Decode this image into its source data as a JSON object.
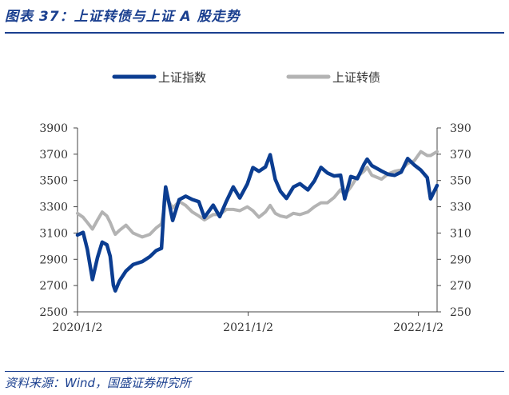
{
  "figure": {
    "title": "图表 37：上证转债与上证 A 股走势",
    "source": "资料来源：Wind，国盛证券研究所"
  },
  "colors": {
    "accent": "#1a3f8f",
    "series_primary": "#0b3d91",
    "series_secondary": "#b3b3b3"
  },
  "chart_data": {
    "type": "line",
    "title": "",
    "xlabel": "",
    "ylabel": "",
    "legend_position": "top",
    "grid": false,
    "x_ticks": [
      "2020/1/2",
      "2021/1/2",
      "2022/1/2"
    ],
    "x_range": [
      "2020/1/2",
      "2022/2/11"
    ],
    "y_left": {
      "range": [
        2500,
        3900
      ],
      "ticks": [
        "3900",
        "3700",
        "3500",
        "3300",
        "3100",
        "2900",
        "2700",
        "2500"
      ]
    },
    "y_right": {
      "range": [
        250,
        390
      ],
      "ticks": [
        "390",
        "370",
        "350",
        "330",
        "310",
        "290",
        "270",
        "250"
      ]
    },
    "x": [
      "2020/1/2",
      "2020/1/14",
      "2020/1/23",
      "2020/2/3",
      "2020/2/14",
      "2020/2/24",
      "2020/3/5",
      "2020/3/12",
      "2020/3/19",
      "2020/3/23",
      "2020/4/1",
      "2020/4/15",
      "2020/4/30",
      "2020/5/20",
      "2020/6/5",
      "2020/6/19",
      "2020/6/30",
      "2020/7/6",
      "2020/7/9",
      "2020/7/24",
      "2020/8/7",
      "2020/8/21",
      "2020/9/4",
      "2020/9/18",
      "2020/9/30",
      "2020/10/19",
      "2020/11/2",
      "2020/11/16",
      "2020/12/1",
      "2020/12/15",
      "2020/12/31",
      "2021/1/12",
      "2021/1/25",
      "2021/2/8",
      "2021/2/18",
      "2021/3/1",
      "2021/3/12",
      "2021/3/25",
      "2021/4/9",
      "2021/4/23",
      "2021/5/10",
      "2021/5/24",
      "2021/6/7",
      "2021/6/21",
      "2021/7/5",
      "2021/7/19",
      "2021/7/28",
      "2021/8/10",
      "2021/8/24",
      "2021/9/7",
      "2021/9/14",
      "2021/9/24",
      "2021/10/15",
      "2021/10/29",
      "2021/11/12",
      "2021/11/26",
      "2021/12/10",
      "2021/12/24",
      "2022/1/7",
      "2022/1/21",
      "2022/1/28",
      "2022/2/11"
    ],
    "series": [
      {
        "name": "上证指数",
        "axis": "left",
        "values": [
          3085,
          3105,
          2976,
          2746,
          2915,
          3031,
          3011,
          2923,
          2702,
          2660,
          2735,
          2811,
          2860,
          2883,
          2920,
          2967,
          2984,
          3332,
          3450,
          3196,
          3354,
          3380,
          3355,
          3338,
          3218,
          3312,
          3225,
          3340,
          3451,
          3367,
          3473,
          3598,
          3570,
          3603,
          3696,
          3508,
          3418,
          3363,
          3450,
          3475,
          3428,
          3497,
          3599,
          3557,
          3534,
          3540,
          3361,
          3530,
          3514,
          3621,
          3662,
          3613,
          3572,
          3547,
          3539,
          3564,
          3667,
          3618,
          3579,
          3522,
          3361,
          3462
        ]
      },
      {
        "name": "上证转债",
        "axis": "right",
        "values": [
          325,
          322,
          318,
          313,
          320,
          326,
          323,
          318,
          312,
          309,
          312,
          316,
          310,
          307,
          309,
          314,
          317,
          330,
          338,
          329,
          334,
          331,
          326,
          323,
          320,
          324,
          324,
          328,
          328,
          327,
          330,
          327,
          322,
          326,
          331,
          325,
          323,
          322,
          325,
          324,
          326,
          330,
          333,
          333,
          337,
          343,
          339,
          345,
          353,
          357,
          360,
          354,
          351,
          355,
          357,
          358,
          363,
          365,
          372,
          369,
          369,
          372
        ]
      }
    ]
  }
}
